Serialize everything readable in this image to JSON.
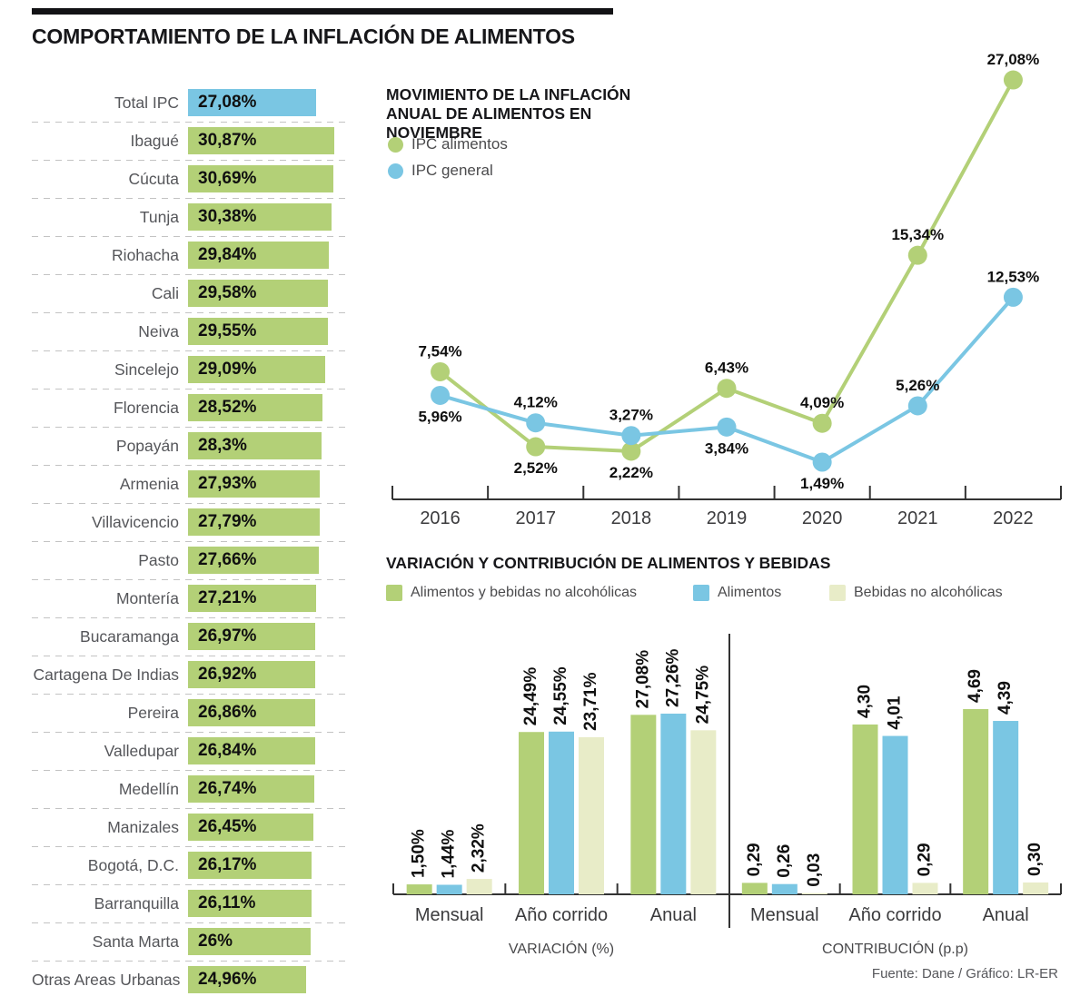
{
  "page_title": "COMPORTAMIENTO DE LA INFLACIÓN DE ALIMENTOS",
  "footer": {
    "source": "Fuente: Dane / Gráfico: LR-ER"
  },
  "colors": {
    "green": "#b3d077",
    "blue": "#7ac6e3",
    "cream": "#e8ecc8",
    "axis": "#333333",
    "text_dark": "#17171a",
    "text_gray": "#55565a"
  },
  "chart_data": [
    {
      "id": "food-inflation-by-city",
      "type": "bar",
      "orientation": "horizontal",
      "categories": [
        "Total IPC",
        "Ibagué",
        "Cúcuta",
        "Tunja",
        "Riohacha",
        "Cali",
        "Neiva",
        "Sincelejo",
        "Florencia",
        "Popayán",
        "Armenia",
        "Villavicencio",
        "Pasto",
        "Montería",
        "Bucaramanga",
        "Cartagena De Indias",
        "Pereira",
        "Valledupar",
        "Medellín",
        "Manizales",
        "Bogotá, D.C.",
        "Barranquilla",
        "Santa Marta",
        "Otras Areas Urbanas"
      ],
      "values": [
        27.08,
        30.87,
        30.69,
        30.38,
        29.84,
        29.58,
        29.55,
        29.09,
        28.52,
        28.3,
        27.93,
        27.79,
        27.66,
        27.21,
        26.97,
        26.92,
        26.86,
        26.84,
        26.74,
        26.45,
        26.17,
        26.11,
        26,
        24.96
      ],
      "labels": [
        "27,08%",
        "30,87%",
        "30,69%",
        "30,38%",
        "29,84%",
        "29,58%",
        "29,55%",
        "29,09%",
        "28,52%",
        "28,3%",
        "27,93%",
        "27,79%",
        "27,66%",
        "27,21%",
        "26,97%",
        "26,92%",
        "26,86%",
        "26,84%",
        "26,74%",
        "26,45%",
        "26,17%",
        "26,11%",
        "26%",
        "24,96%"
      ],
      "highlight_index": 0,
      "bar_color": "#b3d077",
      "highlight_color": "#7ac6e3",
      "xlim": [
        0,
        31
      ]
    },
    {
      "id": "annual-food-inflation-november",
      "type": "line",
      "title": "MOVIMIENTO DE LA INFLACIÓN ANUAL DE ALIMENTOS EN NOVIEMBRE",
      "x": [
        "2016",
        "2017",
        "2018",
        "2019",
        "2020",
        "2021",
        "2022"
      ],
      "series": [
        {
          "name": "IPC alimentos",
          "color": "#b3d077",
          "values": [
            7.54,
            2.52,
            2.22,
            6.43,
            4.09,
            15.34,
            27.08
          ],
          "labels": [
            "7,54%",
            "2,52%",
            "2,22%",
            "6,43%",
            "4,09%",
            "15,34%",
            "27,08%"
          ],
          "label_side": [
            "above",
            "below",
            "below",
            "above",
            "above",
            "above",
            "above"
          ]
        },
        {
          "name": "IPC general",
          "color": "#7ac6e3",
          "values": [
            5.96,
            4.12,
            3.27,
            3.84,
            1.49,
            5.26,
            12.53
          ],
          "labels": [
            "5,96%",
            "4,12%",
            "3,27%",
            "3,84%",
            "1,49%",
            "5,26%",
            "12,53%"
          ],
          "label_side": [
            "below",
            "above",
            "above",
            "below",
            "below",
            "above",
            "above"
          ]
        }
      ],
      "ylim": [
        0,
        30
      ],
      "grid": false,
      "legend_position": "top-left"
    },
    {
      "id": "variation-contribution-food-beverages",
      "type": "bar",
      "title": "VARIACIÓN Y CONTRIBUCIÓN DE ALIMENTOS Y BEBIDAS",
      "legend": [
        "Alimentos y bebidas no alcohólicas",
        "Alimentos",
        "Bebidas no alcohólicas"
      ],
      "series_colors": [
        "#b3d077",
        "#7ac6e3",
        "#e8ecc8"
      ],
      "groups": [
        {
          "label": "VARIACIÓN (%)",
          "ylim": [
            0,
            28
          ],
          "categories": [
            "Mensual",
            "Año corrido",
            "Anual"
          ],
          "series": [
            {
              "name": "Alimentos y bebidas no alcohólicas",
              "values": [
                1.5,
                24.49,
                27.08
              ],
              "labels": [
                "1,50%",
                "24,49%",
                "27,08%"
              ]
            },
            {
              "name": "Alimentos",
              "values": [
                1.44,
                24.55,
                27.26
              ],
              "labels": [
                "1,44%",
                "24,55%",
                "27,26%"
              ]
            },
            {
              "name": "Bebidas no alcohólicas",
              "values": [
                2.32,
                23.71,
                24.75
              ],
              "labels": [
                "2,32%",
                "23,71%",
                "24,75%"
              ]
            }
          ]
        },
        {
          "label": "CONTRIBUCIÓN (p.p)",
          "ylim": [
            0,
            4.8
          ],
          "categories": [
            "Mensual",
            "Año corrido",
            "Anual"
          ],
          "series": [
            {
              "name": "Alimentos y bebidas no alcohólicas",
              "values": [
                0.29,
                4.3,
                4.69
              ],
              "labels": [
                "0,29",
                "4,30",
                "4,69"
              ]
            },
            {
              "name": "Alimentos",
              "values": [
                0.26,
                4.01,
                4.39
              ],
              "labels": [
                "0,26",
                "4,01",
                "4,39"
              ]
            },
            {
              "name": "Bebidas no alcohólicas",
              "values": [
                0.03,
                0.29,
                0.3
              ],
              "labels": [
                "0,03",
                "0,29",
                "0,30"
              ]
            }
          ]
        }
      ]
    }
  ]
}
